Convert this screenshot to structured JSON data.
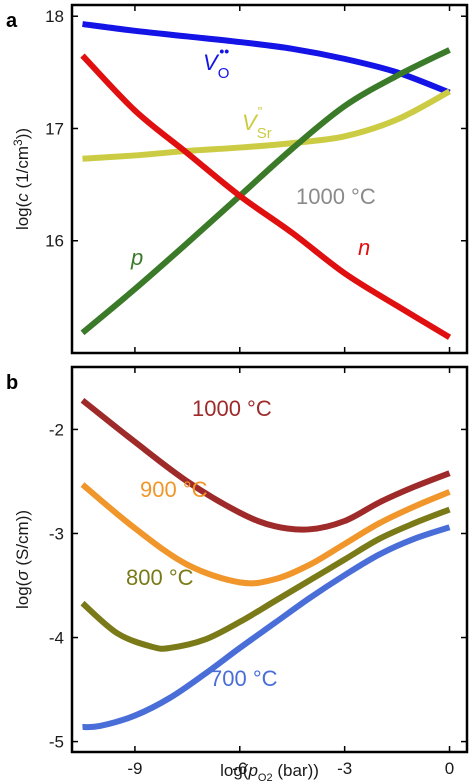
{
  "chart_data": [
    {
      "panel": "a",
      "type": "line",
      "ylabel": "log(c (1/cm³))",
      "xlim": [
        -10.8,
        0.5
      ],
      "ylim": [
        15,
        18.1
      ],
      "yticks": [
        "16",
        "17",
        "18"
      ],
      "ytick_values": [
        16,
        17,
        18
      ],
      "annotation": "1000 °C",
      "series": [
        {
          "name": "V_O••",
          "label_main": "V",
          "label_sub": "O",
          "label_sup": "••",
          "color": "#1414e6",
          "x": [
            -10.5,
            -9,
            -7.5,
            -6,
            -4.5,
            -3,
            -1.5,
            0
          ],
          "y": [
            17.93,
            17.87,
            17.82,
            17.77,
            17.71,
            17.62,
            17.5,
            17.32
          ]
        },
        {
          "name": "V_Sr''",
          "label_main": "V",
          "label_sub": "Sr",
          "label_sup": "\"",
          "color": "#cccc44",
          "x": [
            -10.5,
            -9,
            -7.5,
            -6,
            -4.5,
            -3,
            -1.5,
            0
          ],
          "y": [
            16.73,
            16.76,
            16.8,
            16.83,
            16.87,
            16.93,
            17.08,
            17.33
          ]
        },
        {
          "name": "p",
          "label_main": "p",
          "color": "#3a7a28",
          "x": [
            -10.5,
            -9,
            -7.5,
            -6,
            -4.5,
            -3,
            -1.5,
            0
          ],
          "y": [
            15.18,
            15.57,
            15.98,
            16.4,
            16.82,
            17.2,
            17.47,
            17.7
          ]
        },
        {
          "name": "n",
          "label_main": "n",
          "color": "#e01010",
          "x": [
            -10.5,
            -9,
            -7.5,
            -6,
            -4.5,
            -3,
            -1.5,
            0
          ],
          "y": [
            17.65,
            17.16,
            16.78,
            16.4,
            16.07,
            15.71,
            15.42,
            15.14
          ]
        }
      ]
    },
    {
      "panel": "b",
      "type": "line",
      "xlabel": "log(p_O2 (bar))",
      "ylabel": "log(σ (S/cm))",
      "xlim": [
        -10.8,
        0.5
      ],
      "ylim": [
        -5.1,
        -1.4
      ],
      "xticks": [
        "-9",
        "-6",
        "-3",
        "0"
      ],
      "xtick_values": [
        -9,
        -6,
        -3,
        0
      ],
      "yticks": [
        "-2",
        "-3",
        "-4",
        "-5"
      ],
      "ytick_values": [
        -2,
        -3,
        -4,
        -5
      ],
      "series": [
        {
          "name": "1000 °C",
          "color": "#9e2a2a",
          "x": [
            -10.5,
            -9,
            -7.5,
            -6,
            -5,
            -4,
            -3,
            -2,
            -1,
            0
          ],
          "y": [
            -1.72,
            -2.12,
            -2.5,
            -2.8,
            -2.93,
            -2.96,
            -2.88,
            -2.7,
            -2.55,
            -2.42
          ]
        },
        {
          "name": "900 °C",
          "color": "#f0962a",
          "x": [
            -10.5,
            -9,
            -7.5,
            -6,
            -5,
            -4,
            -3,
            -2,
            -1,
            0
          ],
          "y": [
            -2.53,
            -2.95,
            -3.3,
            -3.47,
            -3.44,
            -3.3,
            -3.1,
            -2.9,
            -2.74,
            -2.6
          ]
        },
        {
          "name": "800 °C",
          "color": "#7a7a18",
          "x": [
            -10.5,
            -9.5,
            -8.5,
            -8,
            -7,
            -6,
            -5,
            -4,
            -3,
            -2,
            -1,
            0
          ],
          "y": [
            -3.67,
            -3.96,
            -4.09,
            -4.1,
            -4.02,
            -3.85,
            -3.65,
            -3.45,
            -3.25,
            -3.05,
            -2.9,
            -2.77
          ]
        },
        {
          "name": "700 °C",
          "color": "#4a6ed8",
          "x": [
            -10.5,
            -10,
            -9,
            -8,
            -7,
            -6,
            -5,
            -4,
            -3,
            -2,
            -1,
            0
          ],
          "y": [
            -4.86,
            -4.85,
            -4.75,
            -4.58,
            -4.35,
            -4.1,
            -3.86,
            -3.62,
            -3.4,
            -3.2,
            -3.05,
            -2.94
          ]
        }
      ]
    }
  ]
}
